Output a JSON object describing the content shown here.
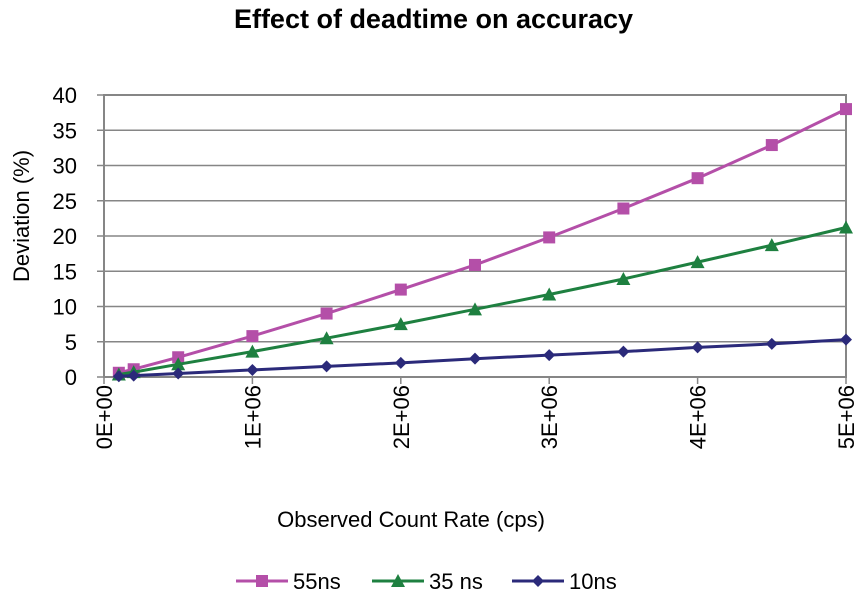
{
  "chart_data": {
    "type": "line",
    "title": "Effect of deadtime on accuracy",
    "xlabel": "Observed Count Rate (cps)",
    "ylabel": "Deviation (%)",
    "xlim": [
      0,
      5000000
    ],
    "ylim": [
      0,
      40
    ],
    "x_ticks": [
      0,
      1000000,
      2000000,
      3000000,
      4000000,
      5000000
    ],
    "x_tick_labels": [
      "0E+00",
      "1E+06",
      "2E+06",
      "3E+06",
      "4E+06",
      "5E+06"
    ],
    "y_ticks": [
      0,
      5,
      10,
      15,
      20,
      25,
      30,
      35,
      40
    ],
    "y_tick_labels": [
      "0",
      "5",
      "10",
      "15",
      "20",
      "25",
      "30",
      "35",
      "40"
    ],
    "grid": "horizontal",
    "legend_position": "bottom",
    "series": [
      {
        "name": "55ns",
        "color": "#B44FA8",
        "marker": "square",
        "x": [
          100000,
          200000,
          500000,
          1000000,
          1500000,
          2000000,
          2500000,
          3000000,
          3500000,
          4000000,
          4500000,
          5000000
        ],
        "y": [
          0.6,
          1.1,
          2.8,
          5.8,
          9.0,
          12.4,
          15.9,
          19.8,
          23.9,
          28.2,
          32.9,
          38.0
        ]
      },
      {
        "name": "35 ns",
        "color": "#1E8040",
        "marker": "triangle",
        "x": [
          100000,
          200000,
          500000,
          1000000,
          1500000,
          2000000,
          2500000,
          3000000,
          3500000,
          4000000,
          4500000,
          5000000
        ],
        "y": [
          0.35,
          0.7,
          1.8,
          3.6,
          5.5,
          7.5,
          9.6,
          11.7,
          13.9,
          16.3,
          18.7,
          21.2
        ]
      },
      {
        "name": "10ns",
        "color": "#2B2A7A",
        "marker": "diamond",
        "x": [
          100000,
          200000,
          500000,
          1000000,
          1500000,
          2000000,
          2500000,
          3000000,
          3500000,
          4000000,
          4500000,
          5000000
        ],
        "y": [
          0.1,
          0.2,
          0.5,
          1.0,
          1.5,
          2.0,
          2.6,
          3.1,
          3.6,
          4.2,
          4.7,
          5.3
        ]
      }
    ]
  }
}
